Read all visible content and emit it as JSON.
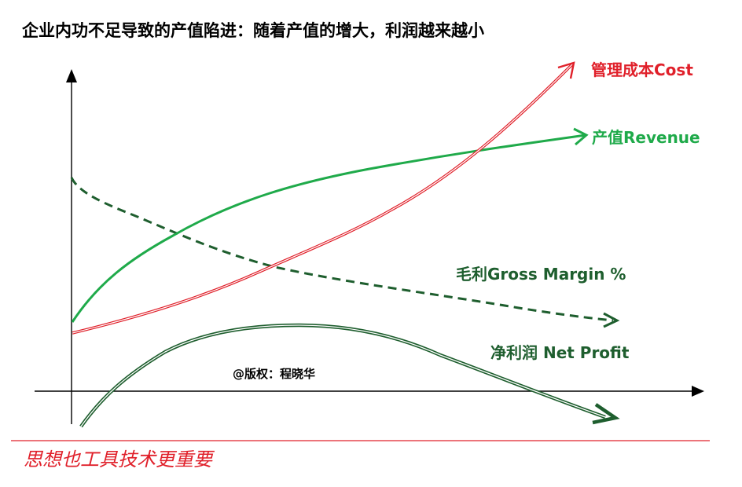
{
  "title": "企业内功不足导致的产值陷进：随着产值的增大，利润越来越小",
  "labels": {
    "cost": "管理成本Cost",
    "revenue": "产值Revenue",
    "gross_margin": "毛利Gross Margin %",
    "net_profit": "净利润 Net Profit"
  },
  "copyright": "@版权：程晓华",
  "handwritten_note": "思想也工具技术更重要",
  "colors": {
    "cost": "#e0202a",
    "revenue": "#1faa4a",
    "gross_margin": "#1e5e2e",
    "net_profit": "#1e5e2e",
    "divider": "#e0202a",
    "axis": "#000000"
  }
}
